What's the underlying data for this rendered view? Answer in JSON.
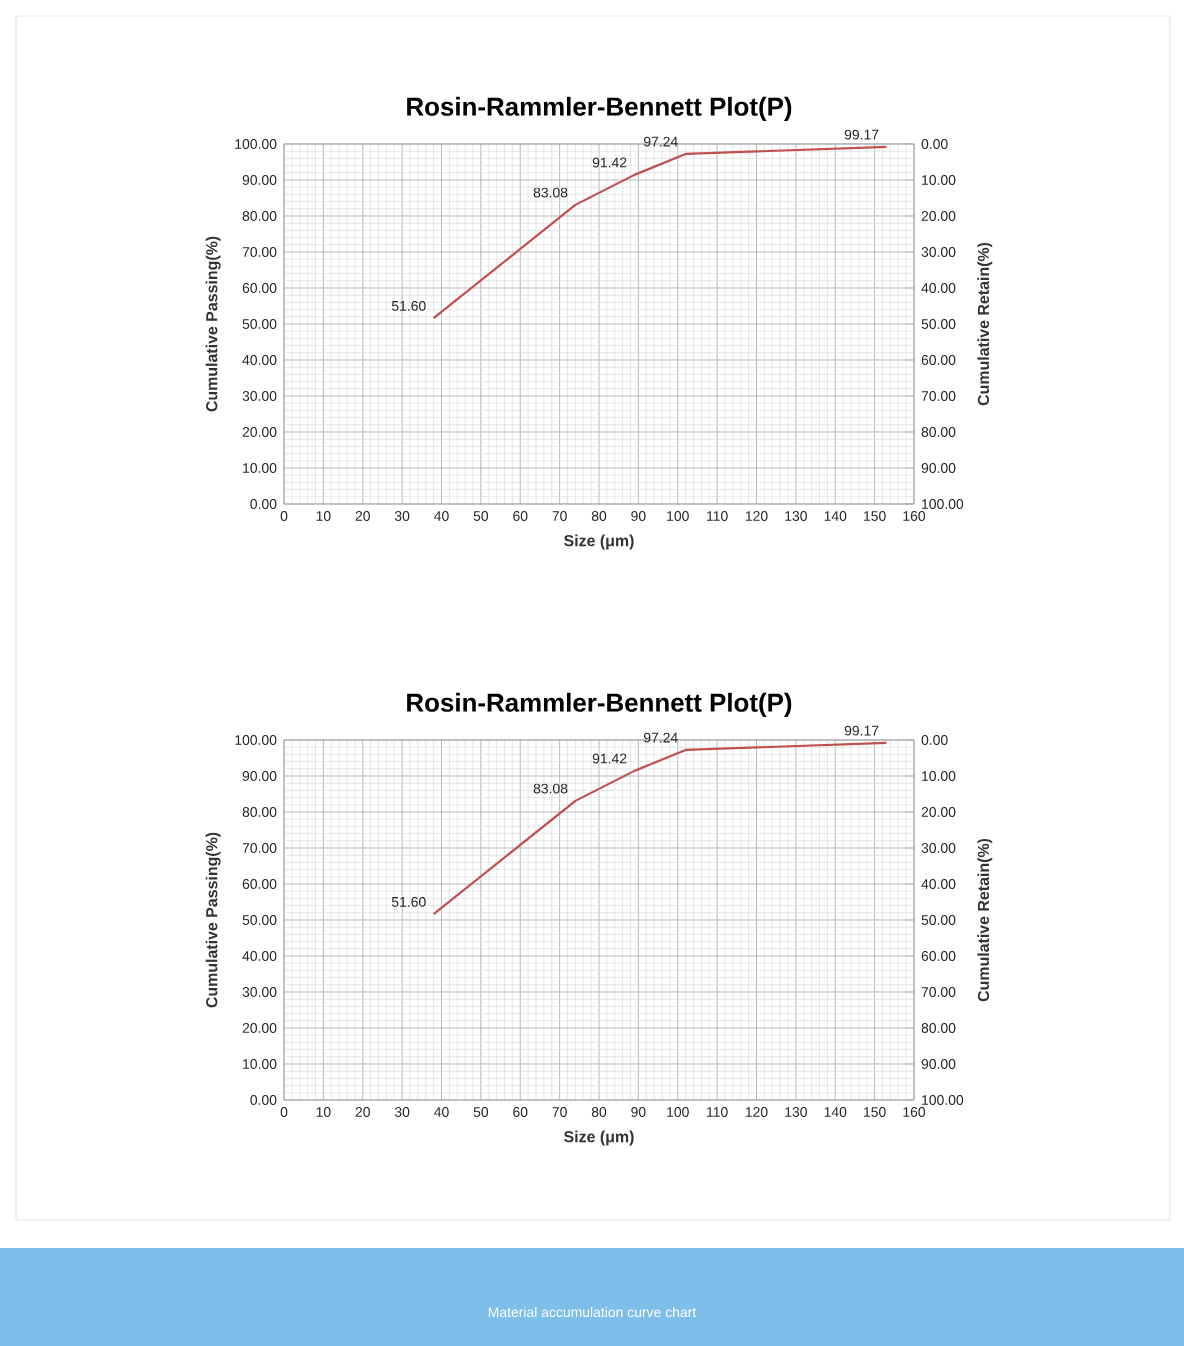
{
  "chart_data": [
    {
      "type": "line",
      "title": "Rosin-Rammler-Bennett Plot(P)",
      "xlabel": "Size (μm)",
      "ylabel": "Cumulative Passing(%)",
      "y2label": "Cumulative Retain(%)",
      "x": [
        38,
        74,
        89,
        102,
        153
      ],
      "series": [
        {
          "color": "#c0504d",
          "values": [
            51.6,
            83.08,
            91.42,
            97.24,
            99.17
          ],
          "value_labels": [
            "51.60",
            "83.08",
            "91.42",
            "97.24",
            "99.17"
          ]
        }
      ],
      "xlim": [
        0,
        160
      ],
      "xticks": [
        0,
        10,
        20,
        30,
        40,
        50,
        60,
        70,
        80,
        90,
        100,
        110,
        120,
        130,
        140,
        150,
        160
      ],
      "ylim": [
        0,
        100
      ],
      "yticks": [
        {
          "value": 0,
          "label": "0.00"
        },
        {
          "value": 10,
          "label": "10.00"
        },
        {
          "value": 20,
          "label": "20.00"
        },
        {
          "value": 30,
          "label": "30.00"
        },
        {
          "value": 40,
          "label": "40.00"
        },
        {
          "value": 50,
          "label": "50.00"
        },
        {
          "value": 60,
          "label": "60.00"
        },
        {
          "value": 70,
          "label": "70.00"
        },
        {
          "value": 80,
          "label": "80.00"
        },
        {
          "value": 90,
          "label": "90.00"
        },
        {
          "value": 100,
          "label": "100.00"
        }
      ],
      "y2lim": [
        100,
        0
      ],
      "y2ticks": [
        {
          "value": 0,
          "label": "0.00"
        },
        {
          "value": 10,
          "label": "10.00"
        },
        {
          "value": 20,
          "label": "20.00"
        },
        {
          "value": 30,
          "label": "30.00"
        },
        {
          "value": 40,
          "label": "40.00"
        },
        {
          "value": 50,
          "label": "50.00"
        },
        {
          "value": 60,
          "label": "60.00"
        },
        {
          "value": 70,
          "label": "70.00"
        },
        {
          "value": 80,
          "label": "80.00"
        },
        {
          "value": 90,
          "label": "90.00"
        },
        {
          "value": 100,
          "label": "100.00"
        }
      ],
      "grid": true
    },
    {
      "type": "line",
      "title": "Rosin-Rammler-Bennett Plot(P)",
      "xlabel": "Size (μm)",
      "ylabel": "Cumulative Passing(%)",
      "y2label": "Cumulative Retain(%)",
      "x": [
        38,
        74,
        89,
        102,
        153
      ],
      "series": [
        {
          "color": "#c0504d",
          "values": [
            51.6,
            83.08,
            91.42,
            97.24,
            99.17
          ],
          "value_labels": [
            "51.60",
            "83.08",
            "91.42",
            "97.24",
            "99.17"
          ]
        }
      ],
      "xlim": [
        0,
        160
      ],
      "xticks": [
        0,
        10,
        20,
        30,
        40,
        50,
        60,
        70,
        80,
        90,
        100,
        110,
        120,
        130,
        140,
        150,
        160
      ],
      "ylim": [
        0,
        100
      ],
      "yticks": [
        {
          "value": 0,
          "label": "0.00"
        },
        {
          "value": 10,
          "label": "10.00"
        },
        {
          "value": 20,
          "label": "20.00"
        },
        {
          "value": 30,
          "label": "30.00"
        },
        {
          "value": 40,
          "label": "40.00"
        },
        {
          "value": 50,
          "label": "50.00"
        },
        {
          "value": 60,
          "label": "60.00"
        },
        {
          "value": 70,
          "label": "70.00"
        },
        {
          "value": 80,
          "label": "80.00"
        },
        {
          "value": 90,
          "label": "90.00"
        },
        {
          "value": 100,
          "label": "100.00"
        }
      ],
      "y2lim": [
        100,
        0
      ],
      "y2ticks": [
        {
          "value": 0,
          "label": "0.00"
        },
        {
          "value": 10,
          "label": "10.00"
        },
        {
          "value": 20,
          "label": "20.00"
        },
        {
          "value": 30,
          "label": "30.00"
        },
        {
          "value": 40,
          "label": "40.00"
        },
        {
          "value": 50,
          "label": "50.00"
        },
        {
          "value": 60,
          "label": "60.00"
        },
        {
          "value": 70,
          "label": "70.00"
        },
        {
          "value": 80,
          "label": "80.00"
        },
        {
          "value": 90,
          "label": "90.00"
        },
        {
          "value": 100,
          "label": "100.00"
        }
      ],
      "grid": true,
      "annotations": [
        "Material accumulation curve chart"
      ]
    }
  ]
}
